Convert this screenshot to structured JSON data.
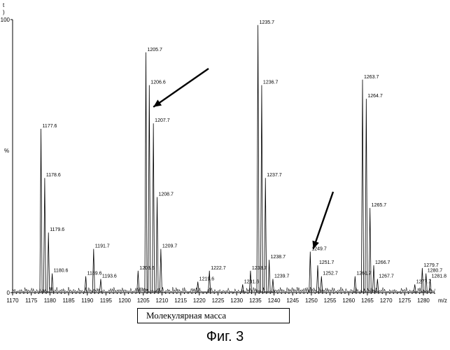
{
  "chart_data": {
    "type": "line",
    "xlim": [
      1170,
      1283
    ],
    "ylim": [
      0,
      100
    ],
    "x_ticks": [
      1170,
      1175,
      1180,
      1185,
      1190,
      1195,
      1200,
      1205,
      1210,
      1215,
      1220,
      1225,
      1230,
      1235,
      1240,
      1245,
      1250,
      1255,
      1260,
      1265,
      1270,
      1275,
      1280
    ],
    "y_ticks": [
      {
        "value": 100,
        "label": "100"
      },
      {
        "value": 0,
        "label": "0"
      }
    ],
    "ylabel": "%",
    "xunit": "m/z",
    "top_marks": [
      "t",
      ")"
    ],
    "peaks": [
      {
        "mz": 1177.6,
        "label": "1177.6",
        "intensity": 60
      },
      {
        "mz": 1178.6,
        "label": "1178.6",
        "intensity": 42
      },
      {
        "mz": 1179.6,
        "label": "1179.6",
        "intensity": 22
      },
      {
        "mz": 1180.6,
        "label": "1180.6",
        "intensity": 7
      },
      {
        "mz": 1189.6,
        "label": "1189.6",
        "intensity": 6
      },
      {
        "mz": 1191.7,
        "label": "1191.7",
        "intensity": 16
      },
      {
        "mz": 1193.6,
        "label": "1193.6",
        "intensity": 5
      },
      {
        "mz": 1203.6,
        "label": "1203.6",
        "intensity": 8
      },
      {
        "mz": 1205.7,
        "label": "1205.7",
        "intensity": 88
      },
      {
        "mz": 1206.6,
        "label": "1206.6",
        "intensity": 76
      },
      {
        "mz": 1207.7,
        "label": "1207.7",
        "intensity": 62
      },
      {
        "mz": 1208.7,
        "label": "1208.7",
        "intensity": 35
      },
      {
        "mz": 1209.7,
        "label": "1209.7",
        "intensity": 16
      },
      {
        "mz": 1219.6,
        "label": "1219.6",
        "intensity": 4
      },
      {
        "mz": 1222.7,
        "label": "1222.7",
        "intensity": 8
      },
      {
        "mz": 1231.6,
        "label": "1231.6",
        "intensity": 3
      },
      {
        "mz": 1233.7,
        "label": "1233.7",
        "intensity": 8
      },
      {
        "mz": 1235.7,
        "label": "1235.7",
        "intensity": 98
      },
      {
        "mz": 1236.7,
        "label": "1236.7",
        "intensity": 76
      },
      {
        "mz": 1237.7,
        "label": "1237.7",
        "intensity": 42
      },
      {
        "mz": 1238.7,
        "label": "1238.7",
        "intensity": 12
      },
      {
        "mz": 1239.7,
        "label": "1239.7",
        "intensity": 5
      },
      {
        "mz": 1249.7,
        "label": "1249.7",
        "intensity": 15
      },
      {
        "mz": 1251.7,
        "label": "1251.7",
        "intensity": 10
      },
      {
        "mz": 1252.7,
        "label": "1252.7",
        "intensity": 6
      },
      {
        "mz": 1261.7,
        "label": "1261.7",
        "intensity": 6
      },
      {
        "mz": 1263.7,
        "label": "1263.7",
        "intensity": 78
      },
      {
        "mz": 1264.7,
        "label": "1264.7",
        "intensity": 71
      },
      {
        "mz": 1265.7,
        "label": "1265.7",
        "intensity": 31
      },
      {
        "mz": 1266.7,
        "label": "1266.7",
        "intensity": 10
      },
      {
        "mz": 1267.7,
        "label": "1267.7",
        "intensity": 5
      },
      {
        "mz": 1277.7,
        "label": "1277.7",
        "intensity": 3
      },
      {
        "mz": 1279.7,
        "label": "1279.7",
        "intensity": 9
      },
      {
        "mz": 1280.7,
        "label": "1280.7",
        "intensity": 7
      },
      {
        "mz": 1281.8,
        "label": "1281.8",
        "intensity": 5
      }
    ],
    "arrows": [
      {
        "target_mz": 1207.7,
        "target_intensity": 68
      },
      {
        "target_mz": 1250.5,
        "target_intensity": 16
      }
    ]
  },
  "xlabel_box": "Молекулярная масса",
  "figure_caption": "Фиг. 3"
}
